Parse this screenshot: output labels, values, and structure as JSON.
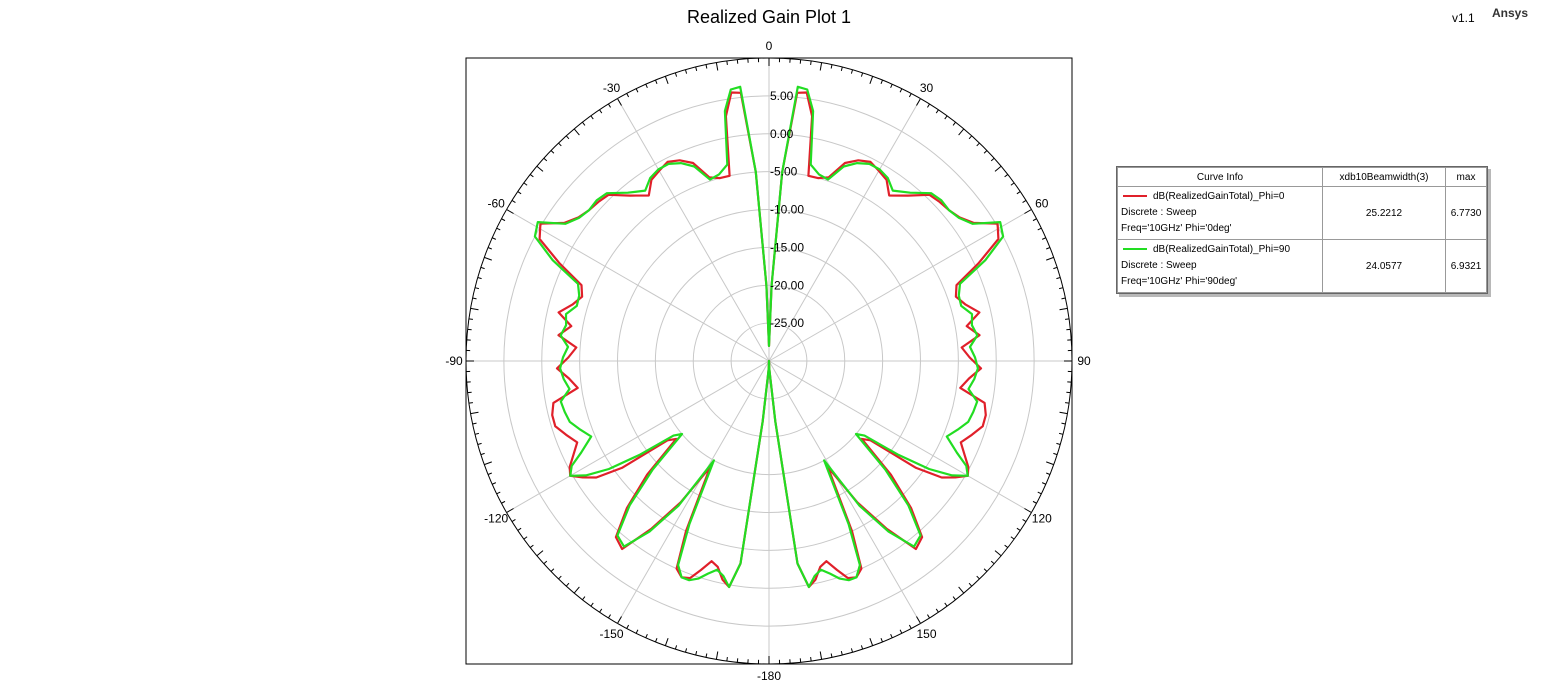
{
  "header": {
    "title": "Realized Gain Plot 1",
    "version": "v1.1",
    "brand": "Ansys"
  },
  "legend": {
    "columns": [
      "Curve Info",
      "xdb10Beamwidth(3)",
      "max"
    ],
    "rows": [
      {
        "name": "dB(RealizedGainTotal)_Phi=0",
        "line2": "Discrete : Sweep",
        "line3": "Freq='10GHz' Phi='0deg'",
        "beamwidth": "25.2212",
        "max": "6.7730",
        "color": "#e0202a"
      },
      {
        "name": "dB(RealizedGainTotal)_Phi=90",
        "line2": "Discrete : Sweep",
        "line3": "Freq='10GHz' Phi='90deg'",
        "beamwidth": "24.0577",
        "max": "6.9321",
        "color": "#22dd22"
      }
    ]
  },
  "chart_data": {
    "type": "line",
    "projection": "polar",
    "theta_zero": "top",
    "theta_direction": "clockwise",
    "r_range": [
      -30,
      10
    ],
    "r_ticks": [
      5,
      0,
      -5,
      -10,
      -15,
      -20,
      -25
    ],
    "r_tick_labels": [
      "5.00",
      "0.00",
      "-5.00",
      "-10.00",
      "-15.00",
      "-20.00",
      "-25.00"
    ],
    "angle_labels": [
      {
        "deg": 0,
        "label": "0"
      },
      {
        "deg": 30,
        "label": "30"
      },
      {
        "deg": 60,
        "label": "60"
      },
      {
        "deg": 90,
        "label": "90"
      },
      {
        "deg": 120,
        "label": "120"
      },
      {
        "deg": 150,
        "label": "150"
      },
      {
        "deg": 180,
        "label": "-180"
      },
      {
        "deg": -150,
        "label": "-150"
      },
      {
        "deg": -120,
        "label": "-120"
      },
      {
        "deg": -90,
        "label": "-90"
      },
      {
        "deg": -60,
        "label": "-60"
      },
      {
        "deg": -30,
        "label": "-30"
      }
    ],
    "series": [
      {
        "name": "dB(RealizedGainTotal)_Phi=0",
        "color": "#e0202a",
        "theta": [
          0,
          2,
          4,
          6,
          8,
          10,
          12,
          15,
          18,
          21,
          24,
          27,
          30,
          33,
          36,
          40,
          44,
          47,
          50,
          53,
          56,
          59,
          62,
          65,
          68,
          71,
          74,
          77,
          80,
          83,
          86,
          89,
          92,
          95,
          98,
          101,
          104,
          107,
          110,
          113,
          116,
          118,
          120,
          122,
          124,
          126,
          128,
          130,
          133,
          136,
          139,
          142,
          145,
          148,
          151,
          154,
          156,
          158,
          160,
          162,
          164,
          166,
          168,
          170,
          172,
          174,
          176,
          178,
          180
        ],
        "r": [
          -28,
          -20,
          -5,
          5.6,
          5.8,
          2.8,
          -5,
          -5,
          -4.5,
          -2,
          -1,
          -0.5,
          -1,
          -1.5,
          -3,
          -1.5,
          0.5,
          0.8,
          1,
          1.5,
          2.6,
          5.2,
          4.3,
          0.5,
          -3.3,
          -3.9,
          -3,
          -1.5,
          -3.5,
          -2,
          -4.5,
          -3.5,
          -2,
          -3.5,
          -4.5,
          -1,
          -0.5,
          -0.5,
          -1.5,
          -2.5,
          -1.2,
          -0.2,
          0.3,
          -1,
          -2.5,
          -6,
          -13,
          -14,
          -8,
          -3,
          0.8,
          1.5,
          -3,
          -8,
          -14,
          -5,
          0,
          0.8,
          0.5,
          -1,
          -2.5,
          -2,
          -0.5,
          0.3,
          -3,
          -22,
          -28,
          -29,
          -30
        ]
      },
      {
        "name": "dB(RealizedGainTotal)_Phi=90",
        "color": "#22dd22",
        "theta": [
          0,
          2,
          4,
          6,
          8,
          10,
          12,
          15,
          18,
          21,
          24,
          27,
          30,
          33,
          36,
          40,
          44,
          47,
          50,
          53,
          56,
          59,
          62,
          65,
          68,
          71,
          74,
          77,
          80,
          83,
          86,
          89,
          92,
          95,
          98,
          101,
          104,
          107,
          110,
          113,
          116,
          118,
          120,
          122,
          124,
          126,
          128,
          130,
          133,
          136,
          139,
          142,
          145,
          148,
          151,
          154,
          156,
          158,
          160,
          162,
          164,
          166,
          168,
          170,
          172,
          174,
          176,
          178,
          180
        ],
        "r": [
          -28,
          -20,
          -5,
          6.4,
          6.2,
          3.5,
          -3.5,
          -4.5,
          -4.8,
          -2.5,
          -1.4,
          -0.8,
          -0.8,
          -1.2,
          -2.2,
          -1,
          0.8,
          1.1,
          1,
          1.4,
          2.4,
          5.6,
          5,
          1.5,
          -2.8,
          -3.5,
          -3.6,
          -2.5,
          -2.8,
          -2.3,
          -3.4,
          -2.8,
          -2.4,
          -2.8,
          -3.4,
          -2,
          -2.2,
          -2.5,
          -3.5,
          -4.5,
          -2.4,
          -0.5,
          0.3,
          -1.5,
          -4.5,
          -9,
          -14,
          -15,
          -9,
          -3.5,
          0.5,
          1.1,
          -2.5,
          -7.5,
          -15,
          -6,
          -0.5,
          0.8,
          0.8,
          0.2,
          -0.8,
          -1.6,
          -1,
          0.3,
          -3,
          -22,
          -28,
          -29,
          -30
        ]
      }
    ]
  }
}
